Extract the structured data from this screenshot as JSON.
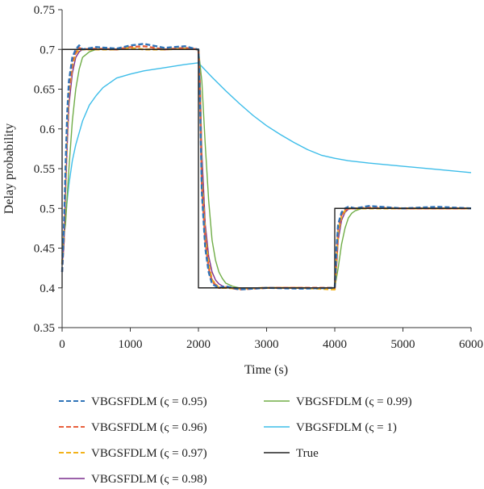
{
  "chart_data": {
    "type": "line",
    "xlabel": "Time (s)",
    "ylabel": "Delay probability",
    "xlim": [
      0,
      6000
    ],
    "ylim": [
      0.35,
      0.75
    ],
    "xticks": [
      0,
      1000,
      2000,
      3000,
      4000,
      5000,
      6000
    ],
    "yticks": [
      0.35,
      0.4,
      0.45,
      0.5,
      0.55,
      0.6,
      0.65,
      0.7,
      0.75
    ],
    "xtick_labels": [
      "0",
      "1000",
      "2000",
      "3000",
      "4000",
      "5000",
      "6000"
    ],
    "ytick_labels": [
      "0.35",
      "0.4",
      "0.45",
      "0.5",
      "0.55",
      "0.6",
      "0.65",
      "0.7",
      "0.75"
    ],
    "grid": false,
    "legend_position": "bottom",
    "series": [
      {
        "name": "VBGSFDLM (ς = 0.95)",
        "color": "#2f73b8",
        "style": "dashed",
        "x": [
          0,
          25,
          50,
          75,
          100,
          150,
          200,
          250,
          300,
          500,
          800,
          1000,
          1200,
          1500,
          1800,
          1990,
          2000,
          2025,
          2050,
          2100,
          2150,
          2200,
          2300,
          2400,
          2600,
          3000,
          3500,
          3990,
          4000,
          4025,
          4050,
          4100,
          4150,
          4200,
          4300,
          4500,
          5000,
          5500,
          6000
        ],
        "y": [
          0.42,
          0.47,
          0.55,
          0.62,
          0.66,
          0.69,
          0.7,
          0.705,
          0.7,
          0.703,
          0.701,
          0.705,
          0.707,
          0.702,
          0.704,
          0.7,
          0.7,
          0.63,
          0.52,
          0.45,
          0.42,
          0.405,
          0.4,
          0.402,
          0.398,
          0.4,
          0.399,
          0.4,
          0.4,
          0.45,
          0.48,
          0.495,
          0.5,
          0.502,
          0.5,
          0.503,
          0.5,
          0.502,
          0.5
        ]
      },
      {
        "name": "VBGSFDLM (ς = 0.96)",
        "color": "#e8603c",
        "style": "dashed",
        "x": [
          0,
          25,
          50,
          75,
          100,
          150,
          200,
          250,
          300,
          500,
          800,
          1000,
          1200,
          1500,
          1800,
          1990,
          2000,
          2025,
          2050,
          2100,
          2150,
          2200,
          2300,
          2400,
          2600,
          3000,
          3500,
          3990,
          4000,
          4025,
          4050,
          4100,
          4150,
          4200,
          4300,
          4500,
          5000,
          5500,
          6000
        ],
        "y": [
          0.42,
          0.46,
          0.54,
          0.61,
          0.65,
          0.685,
          0.697,
          0.702,
          0.7,
          0.701,
          0.7,
          0.703,
          0.704,
          0.7,
          0.702,
          0.7,
          0.7,
          0.64,
          0.53,
          0.46,
          0.425,
          0.408,
          0.4,
          0.401,
          0.398,
          0.4,
          0.4,
          0.4,
          0.4,
          0.44,
          0.475,
          0.492,
          0.498,
          0.5,
          0.5,
          0.501,
          0.5,
          0.5,
          0.5
        ]
      },
      {
        "name": "VBGSFDLM (ς = 0.97)",
        "color": "#f2b21a",
        "style": "dashed",
        "x": [
          0,
          25,
          50,
          75,
          100,
          150,
          200,
          250,
          300,
          500,
          800,
          1000,
          1200,
          1500,
          1800,
          1990,
          2000,
          2025,
          2050,
          2100,
          2150,
          2200,
          2300,
          2400,
          2600,
          3000,
          3500,
          3990,
          4000,
          4025,
          4050,
          4100,
          4150,
          4200,
          4300,
          4500,
          5000,
          5500,
          6000
        ],
        "y": [
          0.43,
          0.46,
          0.53,
          0.6,
          0.645,
          0.68,
          0.695,
          0.7,
          0.7,
          0.7,
          0.7,
          0.702,
          0.7,
          0.7,
          0.701,
          0.7,
          0.7,
          0.645,
          0.54,
          0.465,
          0.43,
          0.41,
          0.4,
          0.4,
          0.399,
          0.4,
          0.4,
          0.398,
          0.398,
          0.435,
          0.47,
          0.49,
          0.497,
          0.5,
          0.5,
          0.5,
          0.5,
          0.5,
          0.5
        ]
      },
      {
        "name": "VBGSFDLM (ς = 0.98)",
        "color": "#7b2f8e",
        "style": "solid",
        "x": [
          0,
          25,
          50,
          75,
          100,
          150,
          200,
          250,
          300,
          400,
          500,
          800,
          1200,
          1600,
          1990,
          2000,
          2025,
          2050,
          2100,
          2150,
          2200,
          2250,
          2300,
          2400,
          2600,
          3000,
          3500,
          3990,
          4000,
          4025,
          4050,
          4100,
          4150,
          4200,
          4300,
          4500,
          5000,
          5500,
          6000
        ],
        "y": [
          0.43,
          0.45,
          0.52,
          0.58,
          0.63,
          0.67,
          0.69,
          0.697,
          0.7,
          0.7,
          0.7,
          0.7,
          0.7,
          0.7,
          0.7,
          0.7,
          0.66,
          0.57,
          0.48,
          0.44,
          0.42,
          0.41,
          0.405,
          0.4,
          0.4,
          0.4,
          0.4,
          0.4,
          0.4,
          0.425,
          0.46,
          0.485,
          0.495,
          0.499,
          0.5,
          0.5,
          0.5,
          0.5,
          0.5
        ]
      },
      {
        "name": "VBGSFDLM (ς = 0.99)",
        "color": "#70ad47",
        "style": "solid",
        "x": [
          0,
          50,
          100,
          150,
          200,
          250,
          300,
          400,
          500,
          600,
          800,
          1200,
          1600,
          1990,
          2000,
          2050,
          2100,
          2150,
          2200,
          2250,
          2300,
          2350,
          2400,
          2500,
          2600,
          3000,
          3500,
          3990,
          4000,
          4050,
          4100,
          4150,
          4200,
          4250,
          4300,
          4400,
          4500,
          5000,
          5500,
          6000
        ],
        "y": [
          0.45,
          0.48,
          0.55,
          0.61,
          0.65,
          0.675,
          0.69,
          0.697,
          0.7,
          0.7,
          0.7,
          0.7,
          0.7,
          0.7,
          0.7,
          0.66,
          0.58,
          0.51,
          0.46,
          0.435,
          0.42,
          0.412,
          0.406,
          0.402,
          0.4,
          0.4,
          0.4,
          0.4,
          0.4,
          0.425,
          0.455,
          0.475,
          0.488,
          0.494,
          0.497,
          0.5,
          0.5,
          0.5,
          0.5,
          0.5
        ]
      },
      {
        "name": "VBGSFDLM (ς = 1)",
        "color": "#3dbde9",
        "style": "solid",
        "x": [
          0,
          50,
          100,
          150,
          200,
          300,
          400,
          500,
          600,
          800,
          1000,
          1200,
          1500,
          1800,
          1990,
          2000,
          2200,
          2400,
          2600,
          2800,
          3000,
          3200,
          3400,
          3600,
          3800,
          4000,
          4200,
          4500,
          5000,
          5500,
          6000
        ],
        "y": [
          0.44,
          0.49,
          0.53,
          0.56,
          0.58,
          0.61,
          0.63,
          0.642,
          0.652,
          0.664,
          0.669,
          0.673,
          0.677,
          0.681,
          0.683,
          0.683,
          0.665,
          0.648,
          0.632,
          0.617,
          0.604,
          0.593,
          0.583,
          0.574,
          0.567,
          0.563,
          0.56,
          0.557,
          0.553,
          0.549,
          0.545
        ]
      },
      {
        "name": "True",
        "color": "#222222",
        "style": "solid",
        "x": [
          0,
          0,
          2000,
          2000,
          4000,
          4000,
          6000
        ],
        "y": [
          0.4,
          0.7,
          0.7,
          0.4,
          0.4,
          0.5,
          0.5
        ]
      }
    ]
  }
}
